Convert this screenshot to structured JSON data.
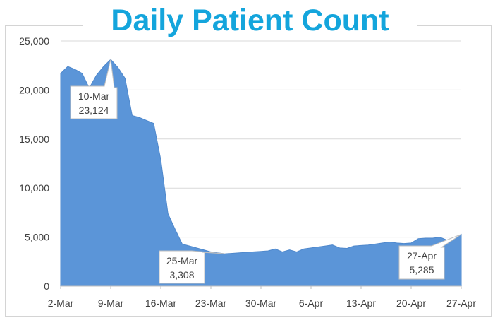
{
  "title": "Daily Patient Count",
  "colors": {
    "title": "#14a5dc",
    "area": "#5b95d8",
    "grid": "#d9d9d9",
    "text": "#404040"
  },
  "chart_data": {
    "type": "area",
    "title": "Daily Patient Count",
    "xlabel": "",
    "ylabel": "",
    "x_start": "2-Mar",
    "x_end": "27-Apr",
    "ylim": [
      0,
      25000
    ],
    "grid": true,
    "legend": "none",
    "x_ticks": [
      "2-Mar",
      "9-Mar",
      "16-Mar",
      "23-Mar",
      "30-Mar",
      "6-Apr",
      "13-Apr",
      "20-Apr",
      "27-Apr"
    ],
    "y_ticks": [
      "0",
      "5,000",
      "10,000",
      "15,000",
      "20,000",
      "25,000"
    ],
    "values": [
      21700,
      22400,
      22100,
      21700,
      20200,
      21500,
      22400,
      23124,
      22300,
      21200,
      17400,
      17200,
      16900,
      16600,
      12900,
      7400,
      5800,
      4300,
      4100,
      3900,
      3700,
      3500,
      3400,
      3308,
      3350,
      3400,
      3450,
      3500,
      3550,
      3600,
      3800,
      3500,
      3700,
      3500,
      3800,
      3900,
      4000,
      4100,
      4200,
      3900,
      3850,
      4100,
      4150,
      4200,
      4300,
      4400,
      4500,
      4400,
      4350,
      4400,
      4850,
      4900,
      4900,
      5000,
      4700,
      4800,
      5285
    ],
    "annotations": [
      {
        "x": "10-Mar",
        "label_date": "10-Mar",
        "label_value": "23,124"
      },
      {
        "x": "25-Mar",
        "label_date": "25-Mar",
        "label_value": "3,308"
      },
      {
        "x": "27-Apr",
        "label_date": "27-Apr",
        "label_value": "5,285"
      }
    ]
  }
}
